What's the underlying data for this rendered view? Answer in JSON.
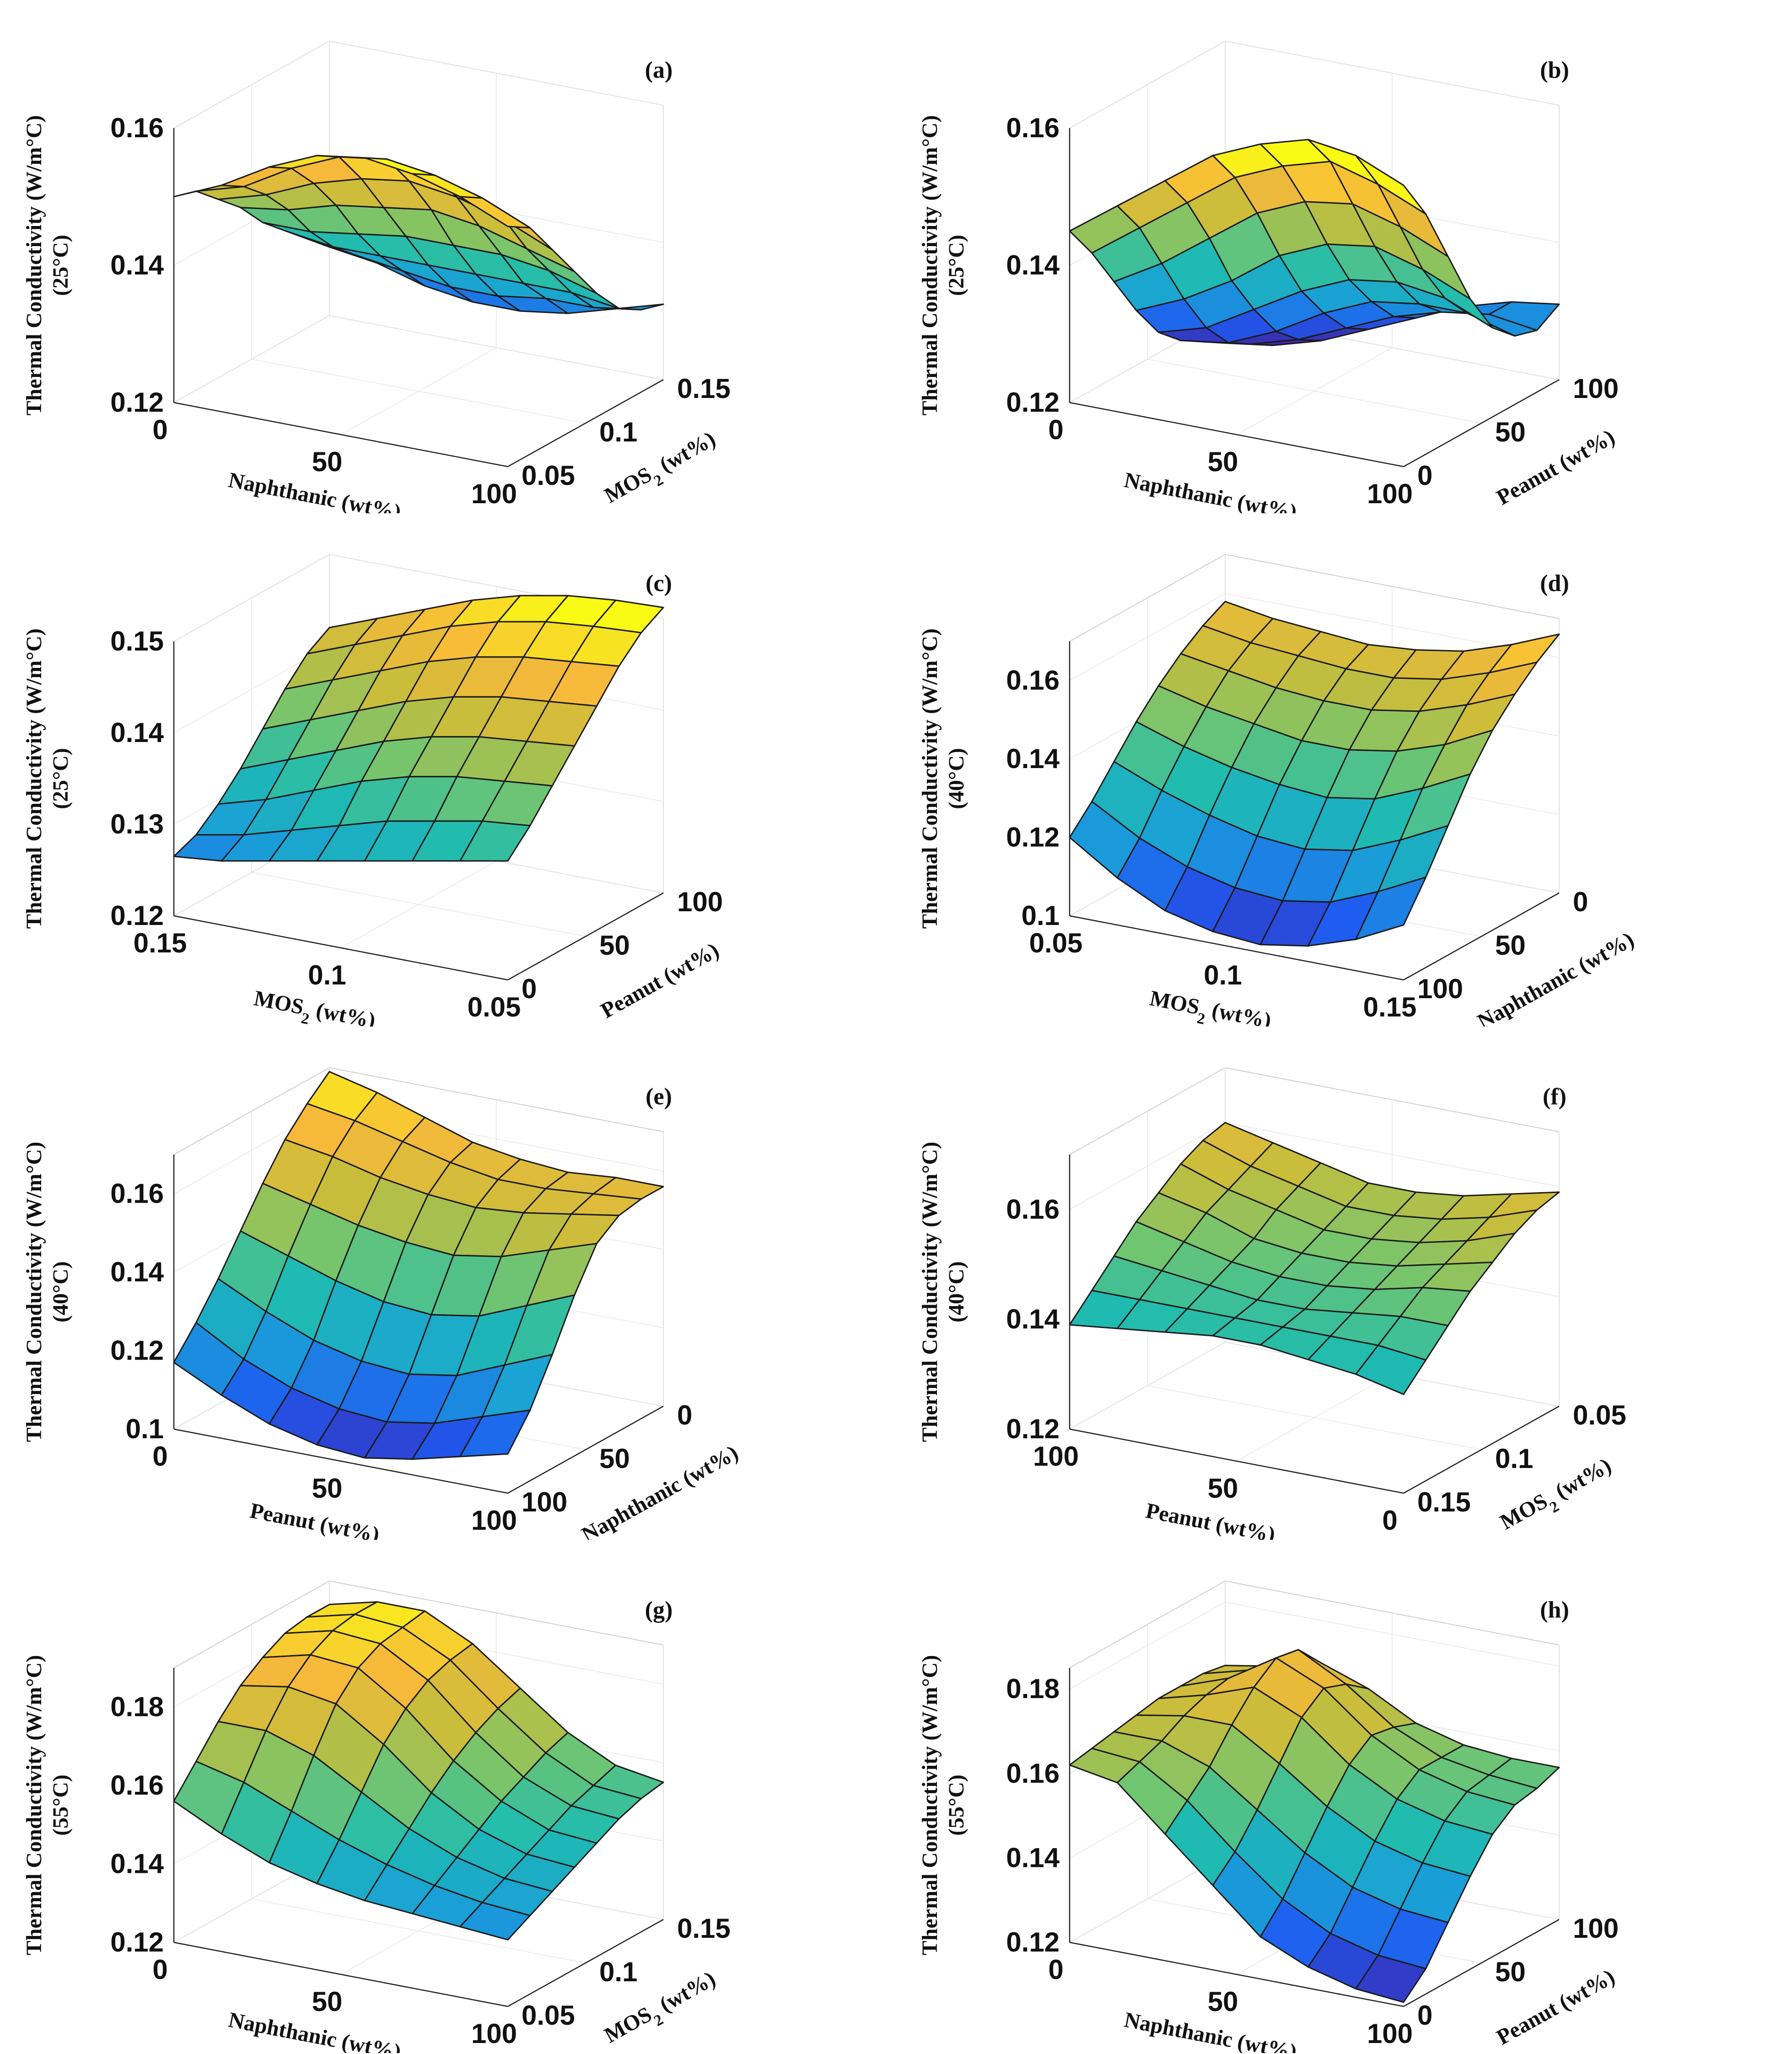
{
  "figure": {
    "colormap": [
      "#3e26a8",
      "#1f5bf2",
      "#1a9fd8",
      "#1fbcb0",
      "#74c56e",
      "#c8bd3b",
      "#f7b93a",
      "#f9fb14"
    ]
  },
  "chart_data": [
    {
      "panel": "(a)",
      "type": "surface",
      "zlabel_lines": [
        "Thermal Conductivity (W/m°C)",
        "(25°C)"
      ],
      "xlabel": "Naphthanic (wt%)",
      "ylabel": "MOS",
      "ylabel_sub": "2",
      "ylabel_tail": " (wt%)",
      "x_ticks": [
        "0",
        "50",
        "100"
      ],
      "y_ticks": [
        "0.05",
        "0.1",
        "0.15"
      ],
      "z_ticks": [
        "0.12",
        "0.14",
        "0.16"
      ],
      "xlim": [
        0,
        100
      ],
      "ylim": [
        0.05,
        0.15
      ],
      "zlim": [
        0.12,
        0.16
      ],
      "z_grid": [
        [
          0.15,
          0.153,
          0.157,
          0.16,
          0.161,
          0.16,
          0.158,
          0.155
        ],
        [
          0.149,
          0.151,
          0.155,
          0.158,
          0.159,
          0.158,
          0.156,
          0.153
        ],
        [
          0.146,
          0.148,
          0.151,
          0.153,
          0.154,
          0.153,
          0.151,
          0.148
        ],
        [
          0.143,
          0.144,
          0.146,
          0.147,
          0.148,
          0.147,
          0.145,
          0.143
        ],
        [
          0.139,
          0.139,
          0.14,
          0.141,
          0.141,
          0.141,
          0.14,
          0.138
        ],
        [
          0.136,
          0.135,
          0.135,
          0.135,
          0.135,
          0.135,
          0.135,
          0.134
        ],
        [
          0.133,
          0.132,
          0.131,
          0.13,
          0.13,
          0.131,
          0.131,
          0.132
        ],
        [
          0.13,
          0.129,
          0.127,
          0.126,
          0.126,
          0.127,
          0.129,
          0.131
        ]
      ]
    },
    {
      "panel": "(b)",
      "type": "surface",
      "zlabel_lines": [
        "Thermal Conductivity (W/m°C)",
        "(25°C)"
      ],
      "xlabel": "Naphthanic (wt%)",
      "ylabel": "Peanut (wt%)",
      "x_ticks": [
        "0",
        "50",
        "100"
      ],
      "y_ticks": [
        "0",
        "50",
        "100"
      ],
      "z_ticks": [
        "0.12",
        "0.14",
        "0.16"
      ],
      "xlim": [
        0,
        100
      ],
      "ylim": [
        0,
        100
      ],
      "zlim": [
        0.12,
        0.16
      ],
      "z_grid": [
        [
          0.145,
          0.15,
          0.155,
          0.16,
          0.163,
          0.165,
          0.164,
          0.161
        ],
        [
          0.14,
          0.145,
          0.15,
          0.155,
          0.158,
          0.16,
          0.158,
          0.155
        ],
        [
          0.134,
          0.138,
          0.143,
          0.148,
          0.151,
          0.152,
          0.15,
          0.147
        ],
        [
          0.128,
          0.131,
          0.135,
          0.14,
          0.143,
          0.144,
          0.142,
          0.139
        ],
        [
          0.123,
          0.125,
          0.129,
          0.133,
          0.136,
          0.137,
          0.136,
          0.133
        ],
        [
          0.12,
          0.121,
          0.124,
          0.128,
          0.131,
          0.132,
          0.132,
          0.13
        ],
        [
          0.118,
          0.119,
          0.121,
          0.124,
          0.127,
          0.129,
          0.13,
          0.129
        ],
        [
          0.116,
          0.117,
          0.119,
          0.122,
          0.125,
          0.128,
          0.13,
          0.131
        ]
      ]
    },
    {
      "panel": "(c)",
      "type": "surface",
      "zlabel_lines": [
        "Thermal Conductivity (W/m°C)",
        "(25°C)"
      ],
      "xlabel": "MOS",
      "xlabel_sub": "2",
      "xlabel_tail": " (wt%)",
      "ylabel": "Peanut (wt%)",
      "x_ticks": [
        "0.15",
        "0.1",
        "0.05"
      ],
      "y_ticks": [
        "0",
        "50",
        "100"
      ],
      "z_ticks": [
        "0.12",
        "0.13",
        "0.14",
        "0.15"
      ],
      "xlim": [
        0.15,
        0.05
      ],
      "ylim": [
        0,
        100
      ],
      "zlim": [
        0.12,
        0.15
      ],
      "z_grid": [
        [
          0.1265,
          0.127,
          0.128,
          0.129,
          0.13,
          0.131,
          0.132,
          0.133
        ],
        [
          0.1275,
          0.1285,
          0.13,
          0.1315,
          0.133,
          0.134,
          0.135,
          0.1355
        ],
        [
          0.1295,
          0.131,
          0.133,
          0.135,
          0.1365,
          0.1375,
          0.138,
          0.1385
        ],
        [
          0.132,
          0.134,
          0.136,
          0.138,
          0.1395,
          0.1405,
          0.141,
          0.1415
        ],
        [
          0.135,
          0.137,
          0.139,
          0.141,
          0.1425,
          0.1435,
          0.144,
          0.1445
        ],
        [
          0.138,
          0.14,
          0.142,
          0.144,
          0.1455,
          0.1465,
          0.147,
          0.1475
        ],
        [
          0.1405,
          0.1425,
          0.1445,
          0.1465,
          0.148,
          0.149,
          0.1495,
          0.1498
        ],
        [
          0.142,
          0.144,
          0.146,
          0.148,
          0.1495,
          0.1505,
          0.151,
          0.1512
        ]
      ]
    },
    {
      "panel": "(d)",
      "type": "surface",
      "zlabel_lines": [
        "Thermal Conductivity (W/m°C)",
        "(40°C)"
      ],
      "xlabel": "MOS",
      "xlabel_sub": "2",
      "xlabel_tail": " (wt%)",
      "ylabel": "Naphthanic (wt%)",
      "x_ticks": [
        "0.05",
        "0.1",
        "0.15"
      ],
      "y_ticks": [
        "100",
        "50",
        "0"
      ],
      "z_ticks": [
        "0.1",
        "0.12",
        "0.14",
        "0.16"
      ],
      "xlim": [
        0.05,
        0.15
      ],
      "ylim": [
        100,
        0
      ],
      "zlim": [
        0.1,
        0.17
      ],
      "z_grid": [
        [
          0.12,
          0.112,
          0.106,
          0.103,
          0.102,
          0.104,
          0.108,
          0.114
        ],
        [
          0.126,
          0.119,
          0.114,
          0.111,
          0.11,
          0.112,
          0.117,
          0.123
        ],
        [
          0.133,
          0.128,
          0.124,
          0.121,
          0.12,
          0.122,
          0.127,
          0.133
        ],
        [
          0.14,
          0.136,
          0.133,
          0.131,
          0.13,
          0.132,
          0.137,
          0.143
        ],
        [
          0.146,
          0.143,
          0.141,
          0.139,
          0.139,
          0.141,
          0.145,
          0.151
        ],
        [
          0.151,
          0.149,
          0.147,
          0.146,
          0.146,
          0.148,
          0.152,
          0.157
        ],
        [
          0.155,
          0.153,
          0.152,
          0.151,
          0.151,
          0.153,
          0.157,
          0.162
        ],
        [
          0.158,
          0.156,
          0.155,
          0.154,
          0.155,
          0.157,
          0.161,
          0.166
        ]
      ]
    },
    {
      "panel": "(e)",
      "type": "surface",
      "zlabel_lines": [
        "Thermal Conductivity (W/m°C)",
        "(40°C)"
      ],
      "xlabel": "Peanut (wt%)",
      "ylabel": "Naphthanic (wt%)",
      "x_ticks": [
        "0",
        "50",
        "100"
      ],
      "y_ticks": [
        "100",
        "50",
        "0"
      ],
      "z_ticks": [
        "0.1",
        "0.12",
        "0.14",
        "0.16"
      ],
      "xlim": [
        0,
        100
      ],
      "ylim": [
        100,
        0
      ],
      "zlim": [
        0.1,
        0.17
      ],
      "z_grid": [
        [
          0.117,
          0.111,
          0.106,
          0.103,
          0.102,
          0.104,
          0.107,
          0.11
        ],
        [
          0.124,
          0.117,
          0.112,
          0.109,
          0.108,
          0.11,
          0.114,
          0.118
        ],
        [
          0.132,
          0.126,
          0.121,
          0.118,
          0.117,
          0.119,
          0.124,
          0.129
        ],
        [
          0.141,
          0.137,
          0.133,
          0.13,
          0.129,
          0.131,
          0.136,
          0.141
        ],
        [
          0.15,
          0.147,
          0.144,
          0.142,
          0.141,
          0.143,
          0.147,
          0.151
        ],
        [
          0.158,
          0.156,
          0.153,
          0.151,
          0.15,
          0.151,
          0.153,
          0.155
        ],
        [
          0.164,
          0.162,
          0.159,
          0.156,
          0.154,
          0.154,
          0.155,
          0.156
        ],
        [
          0.169,
          0.166,
          0.162,
          0.158,
          0.156,
          0.155,
          0.156,
          0.156
        ]
      ]
    },
    {
      "panel": "(f)",
      "type": "surface",
      "zlabel_lines": [
        "Thermal Conductivity (W/m°C)",
        "(40°C)"
      ],
      "xlabel": "Peanut (wt%)",
      "ylabel": "MOS",
      "ylabel_sub": "2",
      "ylabel_tail": " (wt%)",
      "x_ticks": [
        "100",
        "50",
        "0"
      ],
      "y_ticks": [
        "0.15",
        "0.1",
        "0.05"
      ],
      "z_ticks": [
        "0.12",
        "0.14",
        "0.16"
      ],
      "xlim": [
        100,
        0
      ],
      "ylim": [
        0.15,
        0.05
      ],
      "zlim": [
        0.12,
        0.17
      ],
      "z_grid": [
        [
          0.139,
          0.14,
          0.141,
          0.142,
          0.142,
          0.141,
          0.14,
          0.138
        ],
        [
          0.143,
          0.143,
          0.143,
          0.143,
          0.143,
          0.143,
          0.143,
          0.142
        ],
        [
          0.147,
          0.146,
          0.145,
          0.144,
          0.144,
          0.145,
          0.146,
          0.146
        ],
        [
          0.151,
          0.149,
          0.147,
          0.146,
          0.146,
          0.147,
          0.149,
          0.15
        ],
        [
          0.154,
          0.152,
          0.149,
          0.148,
          0.148,
          0.149,
          0.151,
          0.153
        ],
        [
          0.157,
          0.154,
          0.152,
          0.15,
          0.15,
          0.151,
          0.153,
          0.156
        ],
        [
          0.159,
          0.156,
          0.154,
          0.152,
          0.152,
          0.153,
          0.155,
          0.158
        ],
        [
          0.16,
          0.158,
          0.156,
          0.154,
          0.154,
          0.155,
          0.157,
          0.159
        ]
      ]
    },
    {
      "panel": "(g)",
      "type": "surface",
      "zlabel_lines": [
        "Thermal Conductivity (W/m°C)",
        "(55°C)"
      ],
      "xlabel": "Naphthanic (wt%)",
      "ylabel": "MOS",
      "ylabel_sub": "2",
      "ylabel_tail": " (wt%)",
      "x_ticks": [
        "0",
        "50",
        "100"
      ],
      "y_ticks": [
        "0.05",
        "0.1",
        "0.15"
      ],
      "z_ticks": [
        "0.12",
        "0.14",
        "0.16",
        "0.18"
      ],
      "xlim": [
        0,
        100
      ],
      "ylim": [
        0.05,
        0.15
      ],
      "zlim": [
        0.12,
        0.19
      ],
      "z_grid": [
        [
          0.156,
          0.15,
          0.145,
          0.142,
          0.14,
          0.139,
          0.138,
          0.137
        ],
        [
          0.163,
          0.16,
          0.155,
          0.15,
          0.146,
          0.143,
          0.141,
          0.14
        ],
        [
          0.17,
          0.17,
          0.166,
          0.159,
          0.152,
          0.147,
          0.144,
          0.143
        ],
        [
          0.176,
          0.178,
          0.176,
          0.168,
          0.158,
          0.151,
          0.147,
          0.146
        ],
        [
          0.18,
          0.183,
          0.182,
          0.174,
          0.163,
          0.155,
          0.15,
          0.149
        ],
        [
          0.183,
          0.186,
          0.185,
          0.178,
          0.167,
          0.158,
          0.153,
          0.152
        ],
        [
          0.184,
          0.187,
          0.186,
          0.18,
          0.17,
          0.161,
          0.155,
          0.154
        ],
        [
          0.184,
          0.187,
          0.187,
          0.181,
          0.172,
          0.163,
          0.157,
          0.155
        ]
      ]
    },
    {
      "panel": "(h)",
      "type": "surface",
      "zlabel_lines": [
        "Thermal Conductivity (W/m°C)",
        "(55°C)"
      ],
      "xlabel": "Naphthanic (wt%)",
      "ylabel": "Peanut (wt%)",
      "x_ticks": [
        "0",
        "50",
        "100"
      ],
      "y_ticks": [
        "0",
        "50",
        "100"
      ],
      "z_ticks": [
        "0.12",
        "0.14",
        "0.16",
        "0.18"
      ],
      "xlim": [
        0,
        100
      ],
      "ylim": [
        0,
        100
      ],
      "zlim": [
        0.12,
        0.185
      ],
      "z_grid": [
        [
          0.162,
          0.16,
          0.15,
          0.14,
          0.13,
          0.125,
          0.122,
          0.121
        ],
        [
          0.163,
          0.162,
          0.155,
          0.145,
          0.136,
          0.13,
          0.127,
          0.126
        ],
        [
          0.164,
          0.164,
          0.16,
          0.152,
          0.144,
          0.138,
          0.135,
          0.134
        ],
        [
          0.165,
          0.167,
          0.167,
          0.16,
          0.152,
          0.146,
          0.143,
          0.142
        ],
        [
          0.166,
          0.169,
          0.173,
          0.168,
          0.159,
          0.153,
          0.15,
          0.149
        ],
        [
          0.166,
          0.17,
          0.177,
          0.172,
          0.163,
          0.157,
          0.154,
          0.153
        ],
        [
          0.166,
          0.169,
          0.176,
          0.17,
          0.162,
          0.157,
          0.155,
          0.154
        ],
        [
          0.165,
          0.167,
          0.17,
          0.166,
          0.16,
          0.157,
          0.156,
          0.156
        ]
      ]
    }
  ]
}
